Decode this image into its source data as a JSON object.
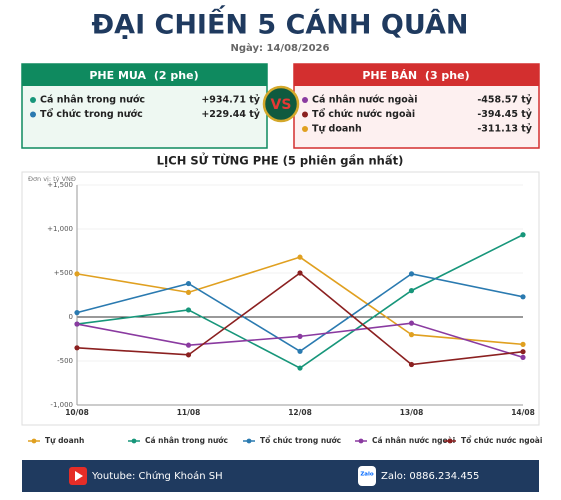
{
  "header": {
    "title": "ĐẠI CHIẾN 5 CÁNH QUÂN",
    "date": "Ngày: 14/08/2026"
  },
  "buy_side": {
    "title": "PHE MUA",
    "count": "(2 phe)",
    "items": [
      {
        "name": "Cá nhân trong nước",
        "value": "+934.71 tỷ"
      },
      {
        "name": "Tổ chức trong nước",
        "value": "+229.44 tỷ"
      }
    ]
  },
  "vs": "VS",
  "sell_side": {
    "title": "PHE BÁN",
    "count": "(3 phe)",
    "items": [
      {
        "name": "Cá nhân nước ngoài",
        "value": "-458.57 tỷ"
      },
      {
        "name": "Tổ chức nước ngoài",
        "value": "-394.45 tỷ"
      },
      {
        "name": "Tự doanh",
        "value": "-311.13 tỷ"
      }
    ]
  },
  "chart_data": {
    "type": "line",
    "title": "LỊCH SỬ TỪNG PHE (5 phiên gần nhất)",
    "unit_label": "Đơn vị: tỷ VNĐ",
    "categories": [
      "10/08",
      "11/08",
      "12/08",
      "13/08",
      "14/08"
    ],
    "series": [
      {
        "name": "Tự doanh",
        "color": "#e0a020",
        "values": [
          490,
          280,
          680,
          -200,
          -311.13
        ]
      },
      {
        "name": "Cá nhân trong nước",
        "color": "#17967a",
        "values": [
          -80,
          80,
          -580,
          300,
          934.71
        ]
      },
      {
        "name": "Tổ chức trong nước",
        "color": "#2a7ab0",
        "values": [
          50,
          380,
          -390,
          490,
          229.44
        ]
      },
      {
        "name": "Cá nhân nước ngoài",
        "color": "#8a3aa0",
        "values": [
          -80,
          -320,
          -220,
          -70,
          -458.57
        ]
      },
      {
        "name": "Tổ chức nước ngoài",
        "color": "#8b2020",
        "values": [
          -350,
          -430,
          500,
          -540,
          -394.45
        ]
      }
    ],
    "ylim": [
      -1000,
      1500
    ],
    "yticks": [
      {
        "value": -1000,
        "label": "-1,000"
      },
      -500,
      0,
      {
        "value": 500,
        "label": "+500"
      },
      {
        "value": 1000,
        "label": "+1,000"
      },
      {
        "value": 1500,
        "label": "+1,500"
      }
    ],
    "grid": true,
    "legend": "bottom"
  },
  "footer": {
    "youtube": "Youtube: Chứng Khoán SH",
    "zalo_icon": "Zalo",
    "zalo": "Zalo: 0886.234.455"
  }
}
